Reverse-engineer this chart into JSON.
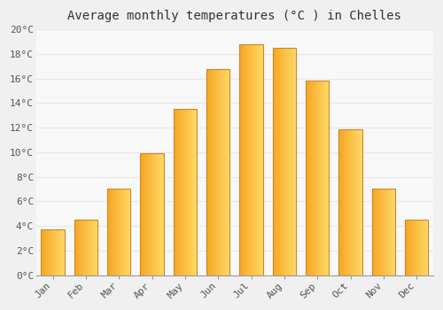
{
  "title": "Average monthly temperatures (°C ) in Chelles",
  "months": [
    "Jan",
    "Feb",
    "Mar",
    "Apr",
    "May",
    "Jun",
    "Jul",
    "Aug",
    "Sep",
    "Oct",
    "Nov",
    "Dec"
  ],
  "values": [
    3.7,
    4.5,
    7.0,
    9.9,
    13.5,
    16.8,
    18.8,
    18.5,
    15.8,
    11.9,
    7.0,
    4.5
  ],
  "bar_color_left": "#F5A623",
  "bar_color_right": "#FFD966",
  "bar_border_color": "#C8882A",
  "ylim": [
    0,
    20
  ],
  "yticks": [
    0,
    2,
    4,
    6,
    8,
    10,
    12,
    14,
    16,
    18,
    20
  ],
  "background_color": "#F0F0F0",
  "plot_bg_color": "#F8F8F8",
  "grid_color": "#E8E8E8",
  "title_fontsize": 10,
  "tick_fontsize": 8,
  "bar_width": 0.7
}
